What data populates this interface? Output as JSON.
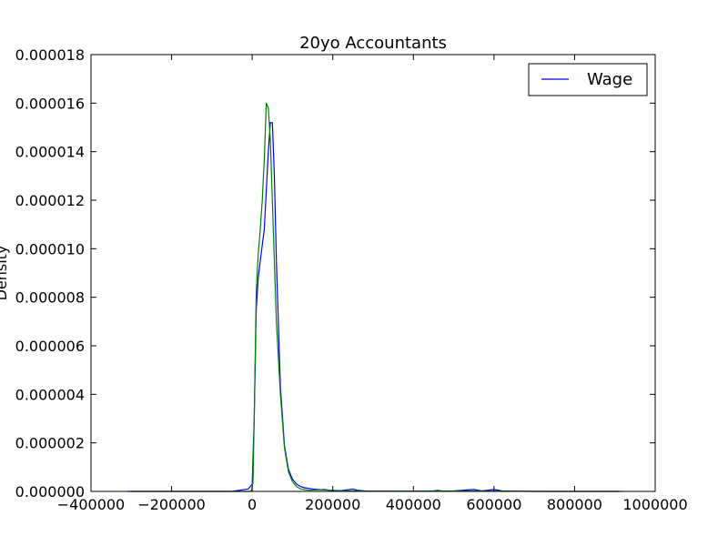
{
  "chart_data": {
    "type": "line",
    "title": "20yo Accountants",
    "xlabel": "",
    "ylabel": "Density",
    "xlim": [
      -400000,
      1000000
    ],
    "ylim": [
      0,
      1.8e-05
    ],
    "x_ticks": [
      -400000,
      -200000,
      0,
      200000,
      400000,
      600000,
      800000,
      1000000
    ],
    "x_tick_labels": [
      "−400000",
      "−200000",
      "0",
      "200000",
      "400000",
      "600000",
      "800000",
      "1000000"
    ],
    "y_ticks": [
      0,
      2e-06,
      4e-06,
      6e-06,
      8e-06,
      1e-05,
      1.2e-05,
      1.4e-05,
      1.6e-05,
      1.8e-05
    ],
    "y_tick_labels": [
      "0.000000",
      "0.000002",
      "0.000004",
      "0.000006",
      "0.000008",
      "0.000010",
      "0.000012",
      "0.000014",
      "0.000016",
      "0.000018"
    ],
    "grid": false,
    "legend_position": "top-right",
    "series": [
      {
        "name": "Wage",
        "color": "#0000ff",
        "x": [
          -310000,
          -150000,
          -50000,
          -10000,
          0,
          5000,
          10000,
          15000,
          20000,
          30000,
          40000,
          45000,
          50000,
          55000,
          60000,
          70000,
          80000,
          90000,
          100000,
          110000,
          120000,
          130000,
          150000,
          170000,
          190000,
          220000,
          250000,
          260000,
          280000,
          300000,
          400000,
          500000,
          550000,
          570000,
          600000,
          620000,
          650000,
          700000,
          800000,
          910000
        ],
        "y": [
          0,
          0,
          0,
          1e-07,
          3e-07,
          3e-06,
          7.5e-06,
          8.8e-06,
          9.5e-06,
          1.08e-05,
          1.4e-05,
          1.52e-05,
          1.52e-05,
          1.3e-05,
          9.5e-06,
          4.3e-06,
          1.9e-06,
          9e-07,
          5e-07,
          3e-07,
          2e-07,
          1.5e-07,
          1e-07,
          7e-08,
          5e-08,
          3e-08,
          1e-07,
          5e-08,
          2e-08,
          1e-08,
          1e-08,
          2e-08,
          8e-08,
          2e-08,
          8e-08,
          2e-08,
          1e-08,
          0,
          0,
          0
        ]
      },
      {
        "color": "#008000",
        "x": [
          -300000,
          -10000,
          -2000,
          2000,
          5000,
          10000,
          15000,
          20000,
          25000,
          30000,
          35000,
          40000,
          45000,
          50000,
          55000,
          60000,
          70000,
          80000,
          90000,
          100000,
          110000,
          120000,
          140000,
          180000,
          200000,
          300000,
          450000,
          460000,
          470000,
          600000,
          750000,
          920000
        ],
        "y": [
          0,
          0,
          0,
          4e-07,
          3e-06,
          8.2e-06,
          9.8e-06,
          1.08e-05,
          1.2e-05,
          1.37e-05,
          1.6e-05,
          1.58e-05,
          1.45e-05,
          1.2e-05,
          9.5e-06,
          7e-06,
          4e-06,
          1.8e-06,
          8e-07,
          4e-07,
          2e-07,
          1e-07,
          5e-08,
          8e-08,
          3e-08,
          1e-08,
          2e-08,
          5e-08,
          2e-08,
          1e-08,
          0,
          0
        ]
      }
    ]
  }
}
